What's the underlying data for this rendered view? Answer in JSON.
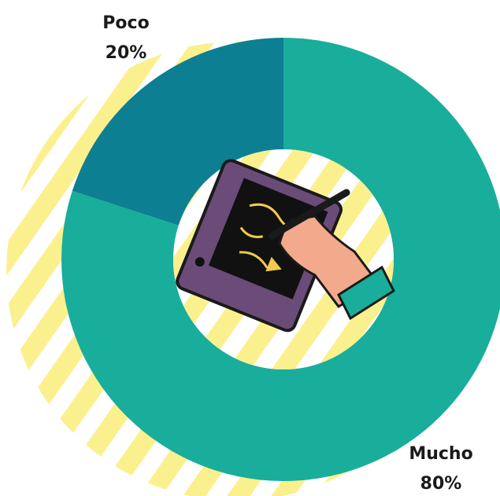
{
  "chart_data": {
    "type": "pie",
    "categories": [
      "Mucho",
      "Poco"
    ],
    "values": [
      80,
      20
    ],
    "value_labels": [
      "80%",
      "20%"
    ],
    "colors": [
      "#19ad9b",
      "#0d7f92"
    ],
    "donut": true
  }
}
